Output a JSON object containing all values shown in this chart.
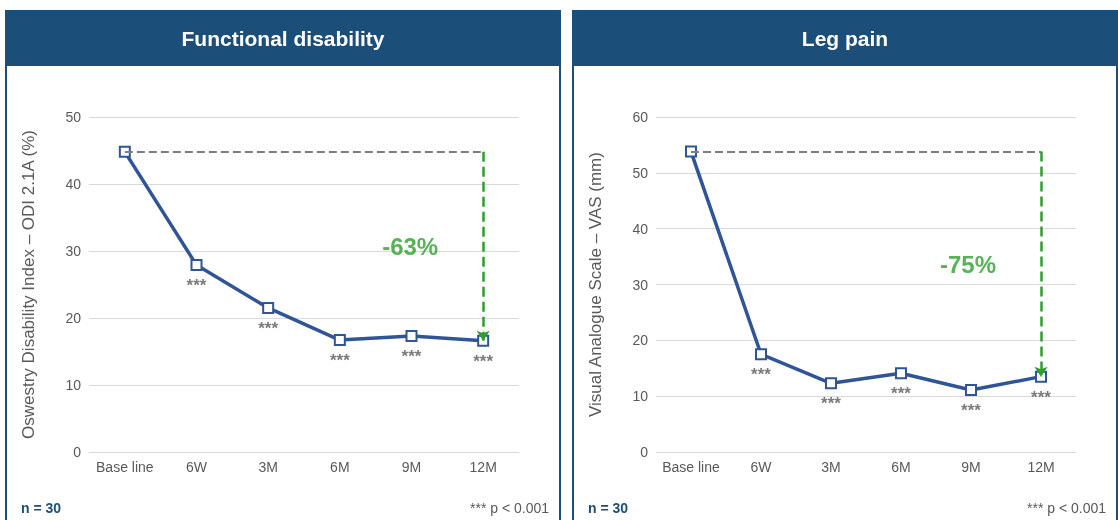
{
  "chart_data": [
    {
      "type": "line",
      "title": "Functional disability",
      "ylabel": "Oswestry Disability Index – ODI 2.1A (%)",
      "categories": [
        "Base line",
        "6W",
        "3M",
        "6M",
        "9M",
        "12M"
      ],
      "series": [
        {
          "color": "#2f5597",
          "values": [
            44.8,
            27.9,
            21.5,
            16.7,
            17.3,
            16.6
          ]
        }
      ],
      "ylim": [
        0,
        50
      ],
      "yticks": [
        0,
        10,
        20,
        30,
        40,
        50
      ],
      "grid": "y",
      "marker": "square",
      "line_style": "solid",
      "ref_lines": [
        {
          "axis": "y",
          "value": 44.8,
          "color": "#7f7f7f",
          "line_style": "dashed"
        }
      ],
      "annotations": [
        "-63%",
        "***",
        "***",
        "***",
        "***",
        "***",
        "n = 30",
        "*** p < 0.001"
      ]
    },
    {
      "type": "line",
      "title": "Leg pain",
      "ylabel": "Visual Analogue Scale – VAS (mm)",
      "categories": [
        "Base line",
        "6W",
        "3M",
        "6M",
        "9M",
        "12M"
      ],
      "series": [
        {
          "color": "#2f5597",
          "values": [
            53.8,
            17.5,
            12.3,
            14.1,
            11.1,
            13.5
          ]
        }
      ],
      "ylim": [
        0,
        60
      ],
      "yticks": [
        0,
        10,
        20,
        30,
        40,
        50,
        60
      ],
      "grid": "y",
      "marker": "square",
      "line_style": "solid",
      "ref_lines": [
        {
          "axis": "y",
          "value": 53.8,
          "color": "#7f7f7f",
          "line_style": "dashed"
        }
      ],
      "annotations": [
        "-75%",
        "***",
        "***",
        "***",
        "***",
        "***",
        "n = 30",
        "*** p < 0.001"
      ]
    }
  ]
}
